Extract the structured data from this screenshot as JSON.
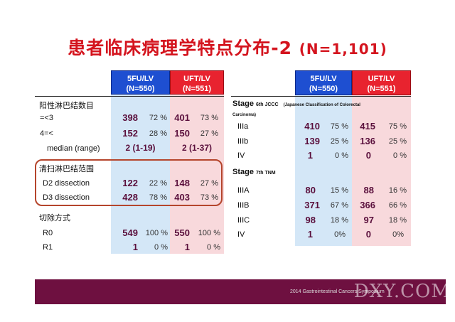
{
  "title": {
    "main": "患者临床病理学特点分布",
    "suffix": "-2",
    "n": "(N=1,101)"
  },
  "columns": {
    "left_blue": {
      "line1": "5FU/LV",
      "line2": "(N=550)"
    },
    "left_red": {
      "line1": "UFT/LV",
      "line2": "(N=551)"
    },
    "right_blue": {
      "line1": "5FU/LV",
      "line2": "(N=550)"
    },
    "right_red": {
      "line1": "UFT/LV",
      "line2": "(N=551)"
    }
  },
  "left": {
    "lymph_title": "阳性淋巴结数目",
    "lymph_rows": [
      {
        "label": "=<3",
        "a": "398",
        "ap": "72 %",
        "b": "401",
        "bp": "73 %"
      },
      {
        "label": "4=<",
        "a": "152",
        "ap": "28 %",
        "b": "150",
        "bp": "27 %"
      }
    ],
    "median": {
      "label": "median (range)",
      "a": "2 (1-19)",
      "b": "2 (1-37)"
    },
    "dissection_title": "清扫淋巴结范围",
    "dissection_rows": [
      {
        "label": "D2 dissection",
        "a": "122",
        "ap": "22 %",
        "b": "148",
        "bp": "27 %"
      },
      {
        "label": "D3 dissection",
        "a": "428",
        "ap": "78 %",
        "b": "403",
        "bp": "73 %"
      }
    ],
    "resection_title": "切除方式",
    "resection_rows": [
      {
        "label": "R0",
        "a": "549",
        "ap": "100 %",
        "b": "550",
        "bp": "100 %"
      },
      {
        "label": "R1",
        "a": "1",
        "ap": "0 %",
        "b": "1",
        "bp": "0 %"
      }
    ]
  },
  "right": {
    "stage6": {
      "word": "Stage",
      "edition": "6th JCCC",
      "note": "(Japanese Classification of Colorectal",
      "note2": "Carcinoma)"
    },
    "stage6_rows": [
      {
        "label": "IIIa",
        "a": "410",
        "ap": "75 %",
        "b": "415",
        "bp": "75 %"
      },
      {
        "label": "IIIb",
        "a": "139",
        "ap": "25 %",
        "b": "136",
        "bp": "25 %"
      },
      {
        "label": "IV",
        "a": "1",
        "ap": "0 %",
        "b": "0",
        "bp": "0 %"
      }
    ],
    "stage7": {
      "word": "Stage",
      "edition": "7th TNM"
    },
    "stage7_rows": [
      {
        "label": "IIIA",
        "a": "80",
        "ap": "15 %",
        "b": "88",
        "bp": "16 %"
      },
      {
        "label": "IIIB",
        "a": "371",
        "ap": "67 %",
        "b": "366",
        "bp": "66 %"
      },
      {
        "label": "IIIC",
        "a": "98",
        "ap": "18 %",
        "b": "97",
        "bp": "18 %"
      },
      {
        "label": "IV",
        "a": "1",
        "ap": "0%",
        "b": "0",
        "bp": "0%"
      }
    ]
  },
  "footer": {
    "brand": "2014 Gastrointestinal Cancers Symposium",
    "watermark": "DXY.COM"
  },
  "colors": {
    "title": "#d4141e",
    "blue_header": "#1e4fd1",
    "red_header": "#e8232f",
    "blue_col": "#d4e7f7",
    "pink_col": "#f8d9dc",
    "number": "#5a0f3c",
    "footer": "#6e1040",
    "highlight_box": "#b5452c"
  }
}
